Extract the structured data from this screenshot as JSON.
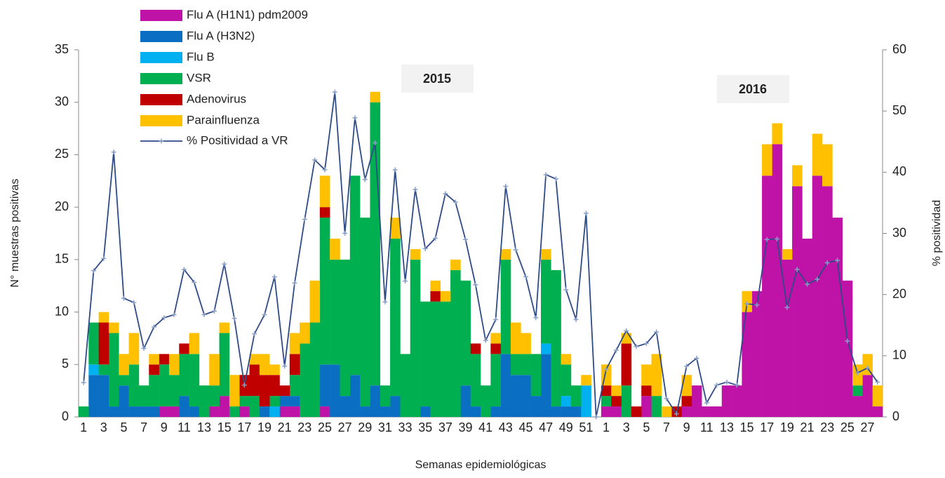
{
  "chart_data": {
    "type": "bar",
    "stacked": true,
    "x_label": "Semanas epidemiológicas",
    "y_label": "N° muestras positivas",
    "y2_label": "% positividad",
    "annotations": [
      "2015",
      "2016"
    ],
    "categories": [
      "1",
      null,
      "3",
      null,
      "5",
      null,
      "7",
      null,
      "9",
      null,
      "11",
      null,
      "13",
      null,
      "15",
      null,
      "17",
      null,
      "19",
      null,
      "21",
      null,
      "23",
      null,
      "25",
      null,
      "27",
      null,
      "29",
      null,
      "31",
      null,
      "33",
      null,
      "35",
      null,
      "37",
      null,
      "39",
      null,
      "41",
      null,
      "43",
      null,
      "45",
      null,
      "47",
      null,
      "49",
      null,
      "51",
      null,
      "1",
      null,
      "3",
      null,
      "5",
      null,
      "7",
      null,
      "9",
      null,
      "11",
      null,
      "13",
      null,
      "15",
      null,
      "17",
      null,
      "19",
      null,
      "21",
      null,
      "23",
      null,
      "25",
      null,
      "27",
      null
    ],
    "ylim": [
      0,
      35
    ],
    "yticks": [
      0,
      5,
      10,
      15,
      20,
      25,
      30,
      35
    ],
    "y2lim": [
      0,
      60
    ],
    "y2ticks": [
      0,
      10,
      20,
      30,
      40,
      50,
      60
    ],
    "grid": false,
    "series": [
      {
        "name": "Flu A (H1N1) pdm2009",
        "color": "#bf12a6",
        "values": [
          0,
          0,
          0,
          0,
          0,
          0,
          0,
          0,
          1,
          1,
          0,
          0,
          0,
          1,
          2,
          0,
          1,
          0,
          0,
          0,
          1,
          1,
          0,
          0,
          1,
          0,
          0,
          0,
          0,
          0,
          0,
          0,
          0,
          0,
          0,
          0,
          0,
          0,
          0,
          0,
          0,
          0,
          0,
          0,
          0,
          0,
          0,
          0,
          0,
          0,
          0,
          0,
          1,
          1,
          0,
          0,
          2,
          0,
          0,
          0,
          1,
          3,
          1,
          1,
          3,
          3,
          10,
          12,
          23,
          26,
          15,
          22,
          17,
          23,
          22,
          19,
          13,
          2,
          4,
          1
        ]
      },
      {
        "name": "Flu A (H3N2)",
        "color": "#0a6fc2",
        "values": [
          0,
          4,
          4,
          1,
          3,
          1,
          1,
          1,
          0,
          0,
          2,
          1,
          0,
          0,
          0,
          0,
          0,
          0,
          1,
          0,
          1,
          1,
          0,
          0,
          4,
          5,
          2,
          4,
          1,
          3,
          1,
          2,
          0,
          0,
          1,
          0,
          0,
          0,
          3,
          1,
          0,
          1,
          6,
          4,
          4,
          2,
          6,
          1,
          1,
          1,
          0,
          0,
          0,
          0,
          0,
          0,
          0,
          0,
          0,
          0,
          0,
          0,
          0,
          0,
          0,
          0,
          0,
          0,
          0,
          0,
          0,
          0,
          0,
          0,
          0,
          0,
          0,
          0,
          0,
          0
        ]
      },
      {
        "name": "Flu B",
        "color": "#00b0f0",
        "values": [
          0,
          1,
          0,
          0,
          0,
          0,
          0,
          0,
          0,
          0,
          0,
          0,
          0,
          0,
          0,
          0,
          0,
          0,
          0,
          1,
          0,
          0,
          0,
          0,
          0,
          0,
          0,
          0,
          0,
          0,
          0,
          0,
          0,
          0,
          0,
          0,
          0,
          0,
          0,
          0,
          0,
          0,
          0,
          0,
          0,
          0,
          1,
          0,
          1,
          0,
          3,
          0,
          0,
          0,
          0,
          0,
          0,
          0,
          0,
          0,
          0,
          0,
          0,
          0,
          0,
          0,
          0,
          0,
          0,
          0,
          0,
          0,
          0,
          0,
          0,
          0,
          0,
          0,
          0,
          0
        ]
      },
      {
        "name": "VSR",
        "color": "#00b050",
        "values": [
          1,
          4,
          1,
          7,
          1,
          4,
          2,
          3,
          4,
          3,
          4,
          5,
          3,
          2,
          6,
          1,
          1,
          2,
          0,
          1,
          0,
          2,
          7,
          9,
          14,
          10,
          13,
          19,
          18,
          27,
          2,
          15,
          6,
          15,
          10,
          11,
          11,
          14,
          10,
          5,
          3,
          5,
          9,
          2,
          2,
          4,
          8,
          13,
          3,
          2,
          0,
          0,
          1,
          0,
          3,
          0,
          0,
          2,
          0,
          0,
          0,
          0,
          0,
          0,
          0,
          0,
          0,
          0,
          0,
          0,
          0,
          0,
          0,
          0,
          0,
          0,
          0,
          1,
          0,
          0
        ]
      },
      {
        "name": "Adenovirus",
        "color": "#c00000",
        "values": [
          0,
          0,
          4,
          0,
          0,
          0,
          0,
          1,
          1,
          0,
          1,
          0,
          0,
          0,
          0,
          0,
          2,
          3,
          3,
          2,
          1,
          2,
          0,
          0,
          1,
          0,
          0,
          0,
          0,
          0,
          0,
          0,
          0,
          0,
          0,
          1,
          0,
          0,
          0,
          1,
          0,
          1,
          0,
          0,
          0,
          0,
          0,
          0,
          0,
          0,
          0,
          0,
          1,
          1,
          4,
          1,
          1,
          0,
          0,
          1,
          1,
          0,
          0,
          0,
          0,
          0,
          0,
          0,
          0,
          0,
          0,
          0,
          0,
          0,
          0,
          0,
          0,
          0,
          0,
          0
        ]
      },
      {
        "name": "Parainfluenza",
        "color": "#ffc000",
        "values": [
          0,
          0,
          1,
          1,
          2,
          3,
          0,
          1,
          0,
          2,
          0,
          2,
          0,
          3,
          1,
          3,
          0,
          1,
          2,
          1,
          0,
          2,
          2,
          4,
          3,
          2,
          0,
          0,
          0,
          1,
          0,
          2,
          0,
          1,
          0,
          1,
          1,
          1,
          0,
          0,
          0,
          1,
          1,
          3,
          2,
          0,
          1,
          0,
          1,
          0,
          1,
          0,
          2,
          1,
          1,
          0,
          2,
          4,
          1,
          0,
          2,
          0,
          0,
          0,
          0,
          0,
          2,
          0,
          3,
          2,
          1,
          2,
          0,
          4,
          4,
          0,
          0,
          2,
          2,
          2
        ]
      },
      {
        "name": "% Positividad a VR",
        "color": "#2e4a87",
        "axis": "y2",
        "type": "line",
        "values": [
          5.6,
          23.9,
          25.9,
          43.3,
          19.4,
          18.7,
          11.2,
          14.7,
          16.2,
          16.7,
          24.1,
          22.0,
          16.7,
          17.3,
          25.0,
          16.1,
          5.2,
          13.6,
          16.7,
          22.9,
          8.3,
          21.9,
          32.3,
          42.0,
          40.4,
          53.1,
          30.0,
          48.9,
          38.8,
          44.8,
          18.8,
          40.4,
          22.2,
          37.2,
          27.5,
          29.2,
          36.5,
          35.1,
          29.0,
          21.6,
          12.5,
          15.9,
          37.7,
          27.3,
          22.9,
          16.2,
          39.6,
          38.9,
          20.8,
          15.9,
          33.3,
          0,
          7.8,
          10.9,
          14.1,
          11.5,
          12.0,
          13.9,
          3.0,
          0.5,
          8.3,
          9.6,
          2.3,
          5.2,
          5.7,
          5.2,
          18.5,
          18.3,
          29.0,
          29.1,
          17.9,
          24.1,
          21.7,
          22.5,
          25.2,
          25.6,
          12.4,
          7.2,
          8.0,
          5.7
        ]
      }
    ]
  }
}
